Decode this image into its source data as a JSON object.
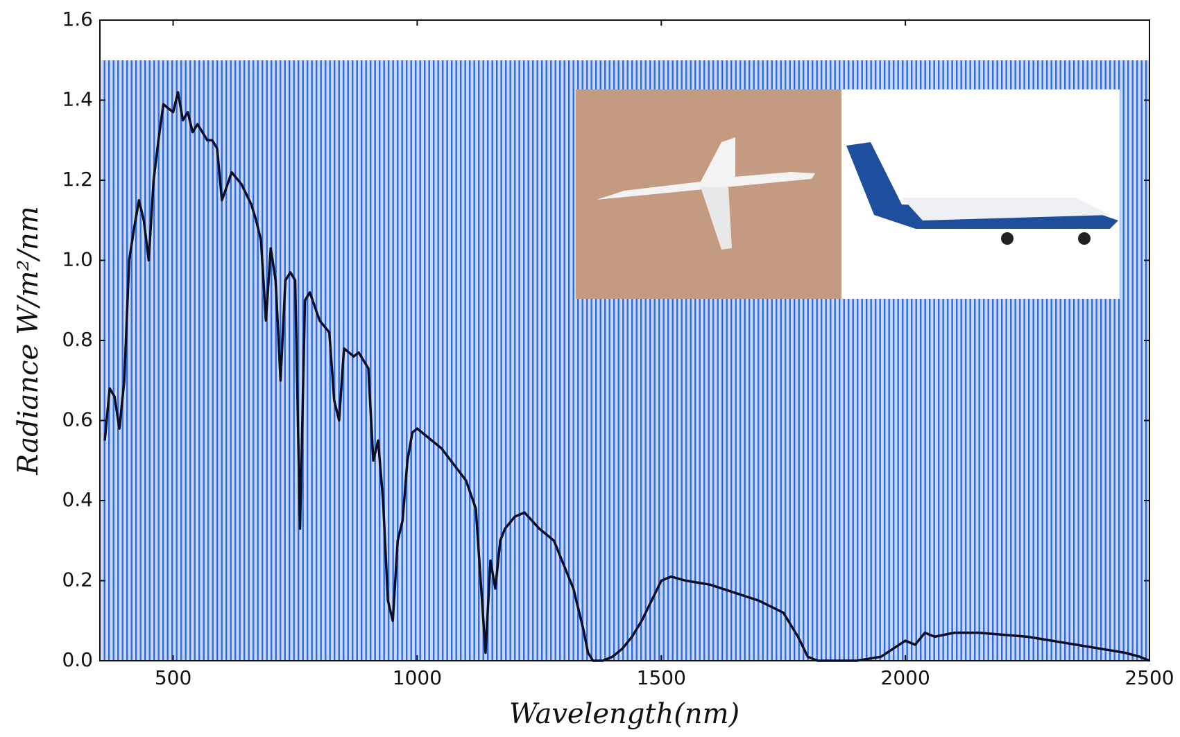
{
  "chart_data": {
    "type": "line",
    "x_label": "Wavelength(nm)",
    "y_label": "Radiance W/m²/nm",
    "xlim": [
      350,
      2500
    ],
    "xticks": [
      500,
      1000,
      1500,
      2000,
      2500
    ],
    "ylim": [
      0,
      1.6
    ],
    "yticks": [
      {
        "value": 0,
        "label": "0.0"
      },
      0.2,
      0.4,
      0.6,
      0.8,
      {
        "value": 1,
        "label": "1.0"
      },
      1.2,
      1.4,
      1.6
    ],
    "series": [
      {
        "color": "#0a0f24",
        "x": [
          360,
          370,
          380,
          390,
          400,
          410,
          420,
          430,
          440,
          450,
          460,
          470,
          480,
          490,
          500,
          510,
          520,
          530,
          540,
          550,
          560,
          570,
          580,
          590,
          600,
          620,
          640,
          660,
          670,
          680,
          690,
          700,
          710,
          720,
          730,
          740,
          750,
          760,
          770,
          780,
          800,
          820,
          830,
          840,
          850,
          860,
          870,
          880,
          900,
          910,
          920,
          930,
          940,
          950,
          960,
          970,
          980,
          990,
          1000,
          1050,
          1100,
          1120,
          1130,
          1140,
          1150,
          1160,
          1170,
          1180,
          1200,
          1220,
          1250,
          1280,
          1300,
          1320,
          1340,
          1350,
          1360,
          1380,
          1400,
          1420,
          1440,
          1460,
          1480,
          1500,
          1520,
          1550,
          1600,
          1650,
          1700,
          1750,
          1780,
          1800,
          1820,
          1850,
          1880,
          1900,
          1950,
          2000,
          2020,
          2040,
          2060,
          2100,
          2150,
          2200,
          2250,
          2300,
          2350,
          2400,
          2450,
          2480,
          2500
        ],
        "values": [
          0.55,
          0.68,
          0.66,
          0.58,
          0.7,
          1.0,
          1.08,
          1.15,
          1.1,
          1.0,
          1.2,
          1.3,
          1.39,
          1.38,
          1.37,
          1.42,
          1.35,
          1.37,
          1.32,
          1.34,
          1.32,
          1.3,
          1.3,
          1.28,
          1.15,
          1.22,
          1.19,
          1.14,
          1.1,
          1.05,
          0.85,
          1.03,
          0.95,
          0.7,
          0.95,
          0.97,
          0.95,
          0.33,
          0.9,
          0.92,
          0.85,
          0.82,
          0.65,
          0.6,
          0.78,
          0.77,
          0.76,
          0.77,
          0.73,
          0.5,
          0.55,
          0.4,
          0.15,
          0.1,
          0.3,
          0.35,
          0.5,
          0.57,
          0.58,
          0.53,
          0.45,
          0.38,
          0.2,
          0.02,
          0.25,
          0.18,
          0.3,
          0.33,
          0.36,
          0.37,
          0.33,
          0.3,
          0.24,
          0.18,
          0.08,
          0.02,
          0,
          0,
          0.01,
          0.03,
          0.06,
          0.1,
          0.15,
          0.2,
          0.21,
          0.2,
          0.19,
          0.17,
          0.15,
          0.12,
          0.06,
          0.01,
          0,
          0,
          0,
          0,
          0.01,
          0.05,
          0.04,
          0.07,
          0.06,
          0.07,
          0.07,
          0.065,
          0.06,
          0.05,
          0.04,
          0.03,
          0.02,
          0.01,
          0
        ]
      }
    ]
  }
}
